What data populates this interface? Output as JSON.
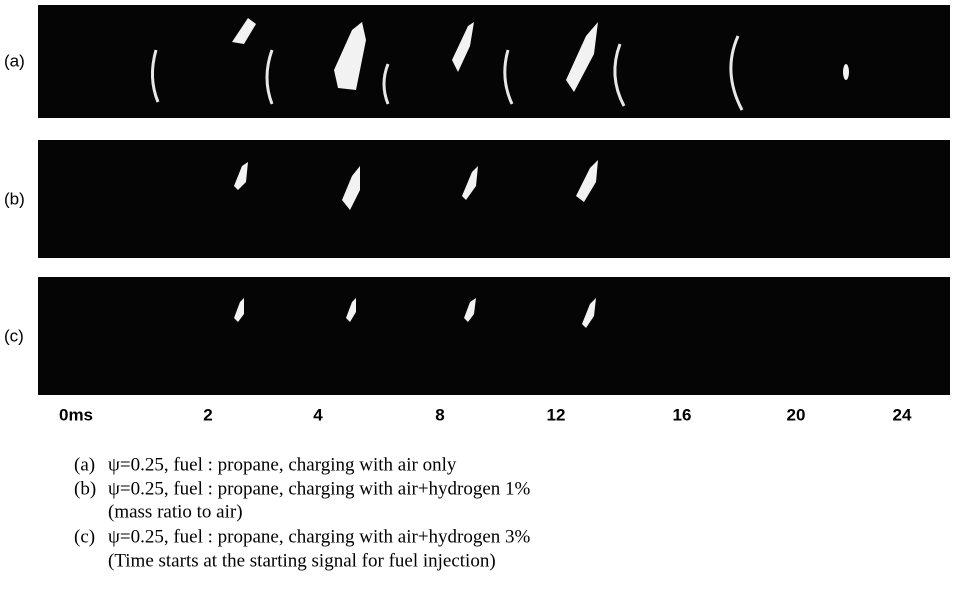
{
  "rows": [
    {
      "label": "(a)"
    },
    {
      "label": "(b)"
    },
    {
      "label": "(c)"
    }
  ],
  "time_labels": [
    "0ms",
    "2",
    "4",
    "8",
    "12",
    "16",
    "20",
    "24"
  ],
  "caption": [
    {
      "tag": "(a)",
      "text": "ψ=0.25,  fuel : propane, charging with air only"
    },
    {
      "tag": "(b)",
      "text": "ψ=0.25,  fuel : propane, charging with air+hydrogen 1%"
    },
    {
      "tag": "",
      "text": "(mass ratio to air)"
    },
    {
      "tag": "(c)",
      "text": "ψ=0.25,  fuel : propane, charging with air+hydrogen 3%"
    },
    {
      "tag": "",
      "text": "(Time starts at the starting signal for fuel injection)"
    }
  ]
}
